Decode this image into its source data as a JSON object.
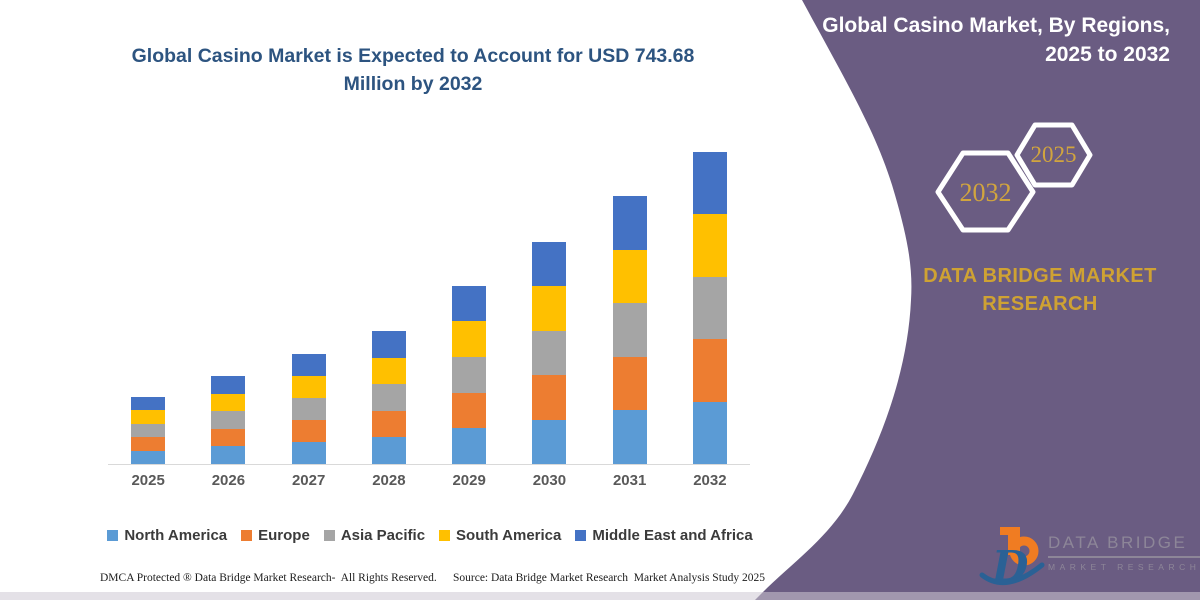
{
  "main_title": {
    "line1": "Global Casino Market is Expected to Account for USD 743.68",
    "line2": "Million by 2032"
  },
  "chart_data": {
    "type": "bar",
    "stacked": true,
    "unit": "USD Million",
    "title": "Global Casino Market is Expected to Account for USD 743.68 Million by 2032",
    "categories": [
      "2025",
      "2026",
      "2027",
      "2028",
      "2029",
      "2030",
      "2031",
      "2032"
    ],
    "series": [
      {
        "name": "North America",
        "color": "#5b9bd5",
        "values": [
          32.1,
          42.0,
          52.4,
          63.4,
          85.0,
          105.7,
          127.7,
          148.7
        ]
      },
      {
        "name": "Europe",
        "color": "#ed7d31",
        "values": [
          32.1,
          42.0,
          52.4,
          63.4,
          85.0,
          105.7,
          127.7,
          148.7
        ]
      },
      {
        "name": "Asia Pacific",
        "color": "#a5a5a5",
        "values": [
          32.1,
          42.0,
          52.4,
          63.4,
          85.0,
          105.7,
          127.7,
          148.7
        ]
      },
      {
        "name": "South America",
        "color": "#ffc000",
        "values": [
          32.1,
          42.0,
          52.4,
          63.4,
          85.0,
          105.7,
          127.7,
          148.7
        ]
      },
      {
        "name": "Middle East and Africa",
        "color": "#4472c4",
        "values": [
          32.1,
          42.0,
          52.4,
          63.4,
          85.0,
          105.7,
          127.7,
          148.7
        ]
      }
    ],
    "totals": [
      160.4,
      209.8,
      262.2,
      317.0,
      425.0,
      528.4,
      638.3,
      743.68
    ],
    "ylim": [
      0,
      743.68
    ],
    "gridlines": false,
    "y_axis_shown": false,
    "legend_position": "bottom"
  },
  "footer": {
    "dmca": "DMCA Protected ® Data Bridge Market Research-  All Rights Reserved.",
    "source": "Source: Data Bridge Market Research  Market Analysis Study 2025"
  },
  "side_panel": {
    "title_line1": "Global Casino Market, By Regions,",
    "title_line2": "2025 to 2032",
    "hexagon_end_year": "2032",
    "hexagon_start_year": "2025",
    "brand_line1": "DATA BRIDGE MARKET",
    "brand_line2": "RESEARCH",
    "colors": {
      "background": "#6a5c82",
      "accent_gold": "#cfa233",
      "hexagon_outline": "#ffffff"
    }
  },
  "logo": {
    "wordmark": "DATA BRIDGE",
    "tagline": "MARKET RESEARCH",
    "colors": {
      "orange": "#f07c22",
      "blue": "#2a6195",
      "gray": "#8d8698"
    }
  }
}
